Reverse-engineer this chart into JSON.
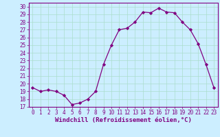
{
  "x": [
    0,
    1,
    2,
    3,
    4,
    5,
    6,
    7,
    8,
    9,
    10,
    11,
    12,
    13,
    14,
    15,
    16,
    17,
    18,
    19,
    20,
    21,
    22,
    23
  ],
  "y": [
    19.5,
    19.0,
    19.2,
    19.0,
    18.5,
    17.3,
    17.5,
    18.0,
    19.0,
    22.5,
    25.0,
    27.0,
    27.2,
    28.0,
    29.3,
    29.2,
    29.8,
    29.3,
    29.2,
    28.0,
    27.0,
    25.2,
    22.5,
    19.5
  ],
  "line_color": "#800080",
  "marker": "D",
  "marker_size": 2.2,
  "bg_color": "#cceeff",
  "grid_color": "#aaddcc",
  "xlabel": "Windchill (Refroidissement éolien,°C)",
  "ylim": [
    17,
    30.5
  ],
  "xlim": [
    -0.5,
    23.5
  ],
  "yticks": [
    17,
    18,
    19,
    20,
    21,
    22,
    23,
    24,
    25,
    26,
    27,
    28,
    29,
    30
  ],
  "xticks": [
    0,
    1,
    2,
    3,
    4,
    5,
    6,
    7,
    8,
    9,
    10,
    11,
    12,
    13,
    14,
    15,
    16,
    17,
    18,
    19,
    20,
    21,
    22,
    23
  ],
  "tick_label_size": 5.5,
  "xlabel_size": 6.5
}
